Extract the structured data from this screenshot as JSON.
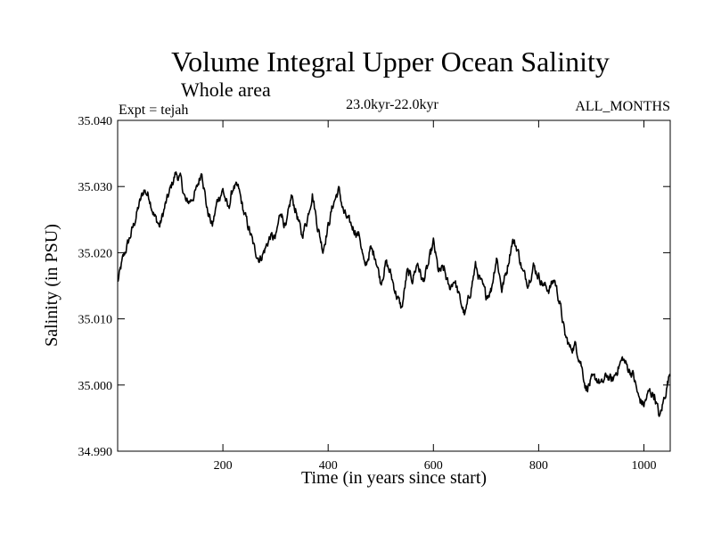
{
  "chart_data": {
    "type": "line",
    "title": "Volume Integral Upper Ocean Salinity",
    "subtitle": "Whole area",
    "annotations": {
      "experiment": "Expt = tejah",
      "period": "23.0kyr-22.0kyr",
      "months": "ALL_MONTHS"
    },
    "xlabel": "Time (in years since start)",
    "ylabel": "Salinity (in PSU)",
    "xlim": [
      0,
      1050
    ],
    "ylim": [
      34.99,
      35.04
    ],
    "xticks": [
      200,
      400,
      600,
      800,
      1000
    ],
    "xtick_labels": [
      "200",
      "400",
      "600",
      "800",
      "1000"
    ],
    "yticks": [
      34.99,
      35.0,
      35.01,
      35.02,
      35.03,
      35.04
    ],
    "ytick_labels": [
      "34.990",
      "35.000",
      "35.010",
      "35.020",
      "35.030",
      "35.040"
    ],
    "grid": false,
    "series": [
      {
        "name": "salinity",
        "color": "#000000",
        "x": [
          0,
          10,
          20,
          30,
          40,
          50,
          60,
          70,
          80,
          90,
          100,
          110,
          120,
          130,
          140,
          150,
          160,
          170,
          180,
          190,
          200,
          210,
          220,
          230,
          240,
          250,
          260,
          270,
          280,
          290,
          300,
          310,
          320,
          330,
          340,
          350,
          360,
          370,
          380,
          390,
          400,
          410,
          420,
          430,
          440,
          450,
          460,
          470,
          480,
          490,
          500,
          510,
          520,
          530,
          540,
          550,
          560,
          570,
          580,
          590,
          600,
          610,
          620,
          630,
          640,
          650,
          660,
          670,
          680,
          690,
          700,
          710,
          720,
          730,
          740,
          750,
          760,
          770,
          780,
          790,
          800,
          810,
          820,
          830,
          840,
          850,
          860,
          870,
          880,
          890,
          900,
          910,
          920,
          930,
          940,
          950,
          960,
          970,
          980,
          990,
          1000,
          1010,
          1020,
          1030,
          1040,
          1050
        ],
        "values": [
          35.0155,
          35.019,
          35.0215,
          35.024,
          35.027,
          35.0295,
          35.0285,
          35.0255,
          35.024,
          35.027,
          35.0295,
          35.032,
          35.031,
          35.0275,
          35.028,
          35.0295,
          35.0325,
          35.0265,
          35.024,
          35.028,
          35.0295,
          35.0265,
          35.03,
          35.0295,
          35.026,
          35.0235,
          35.0205,
          35.019,
          35.0205,
          35.0225,
          35.022,
          35.0265,
          35.0235,
          35.0285,
          35.026,
          35.0225,
          35.025,
          35.029,
          35.024,
          35.0205,
          35.024,
          35.0275,
          35.0295,
          35.026,
          35.0245,
          35.0235,
          35.0225,
          35.0175,
          35.0205,
          35.0195,
          35.0155,
          35.0185,
          35.0165,
          35.0135,
          35.0115,
          35.017,
          35.016,
          35.0185,
          35.0155,
          35.018,
          35.0215,
          35.017,
          35.0175,
          35.0145,
          35.016,
          35.013,
          35.0105,
          35.014,
          35.018,
          35.0155,
          35.0135,
          35.0145,
          35.0195,
          35.0145,
          35.0175,
          35.022,
          35.0205,
          35.017,
          35.0155,
          35.018,
          35.0165,
          35.015,
          35.0145,
          35.016,
          35.0125,
          35.0075,
          35.0055,
          35.006,
          35.0035,
          34.9995,
          35.0005,
          35.001,
          35.0,
          35.0015,
          35.0005,
          35.0025,
          35.004,
          35.0025,
          35.0015,
          34.998,
          34.997,
          34.999,
          34.9985,
          34.995,
          34.9985,
          35.002
        ]
      }
    ]
  }
}
